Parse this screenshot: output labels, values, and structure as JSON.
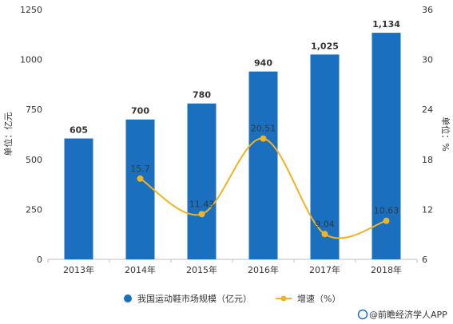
{
  "chart_data": {
    "type": "bar",
    "categories": [
      "2013年",
      "2014年",
      "2015年",
      "2016年",
      "2017年",
      "2018年"
    ],
    "series": [
      {
        "name": "我国运动鞋市场规模（亿元）",
        "type": "bar",
        "axis": "left",
        "values": [
          605,
          700,
          780,
          940,
          1025,
          1134
        ],
        "labels": [
          "605",
          "700",
          "780",
          "940",
          "1,025",
          "1,134"
        ],
        "color": "#1a6fbf"
      },
      {
        "name": "增速（%）",
        "type": "line",
        "axis": "right",
        "values": [
          null,
          15.7,
          11.43,
          20.51,
          9.04,
          10.63
        ],
        "labels": [
          "",
          "15.7",
          "11.43",
          "20.51",
          "9.04",
          "10.63"
        ],
        "color": "#f0b323"
      }
    ],
    "ylabel_left": "单位：亿元",
    "ylabel_right": "单位：%",
    "ylim_left": [
      0,
      1250
    ],
    "yticks_left": [
      "0",
      "250",
      "500",
      "750",
      "1000",
      "1250"
    ],
    "ylim_right": [
      6,
      36
    ],
    "yticks_right": [
      "6",
      "12",
      "18",
      "24",
      "30",
      "36"
    ],
    "grid": false,
    "legend_position": "bottom",
    "source": "@前瞻经济学人APP"
  }
}
